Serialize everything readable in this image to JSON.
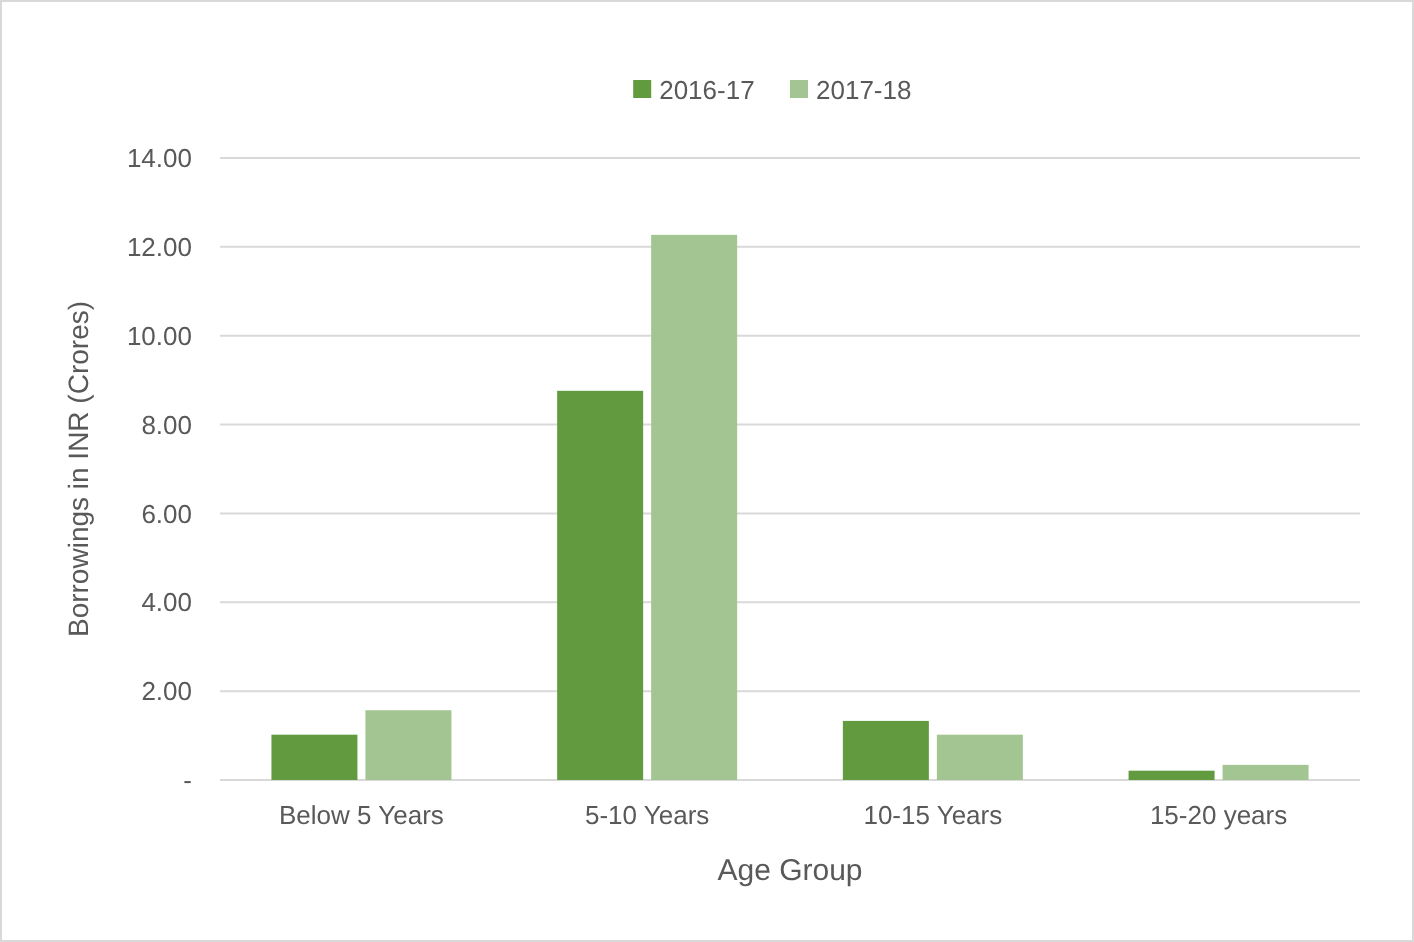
{
  "chart_data": {
    "type": "bar",
    "xlabel": "Age Group",
    "ylabel": "Borrowings in INR (Crores)",
    "categories": [
      "Below 5 Years",
      "5-10 Years",
      "10-15 Years",
      "15-20 years"
    ],
    "series": [
      {
        "name": "2016-17",
        "color": "#629a3f",
        "values": [
          1.02,
          8.76,
          1.33,
          0.21
        ]
      },
      {
        "name": "2017-18",
        "color": "#a3c592",
        "values": [
          1.57,
          12.27,
          1.02,
          0.34
        ]
      }
    ],
    "ylim": [
      0,
      14
    ],
    "yticks": [
      {
        "value": 0,
        "label": "-"
      },
      {
        "value": 2,
        "label": "2.00"
      },
      {
        "value": 4,
        "label": "4.00"
      },
      {
        "value": 6,
        "label": "6.00"
      },
      {
        "value": 8,
        "label": "8.00"
      },
      {
        "value": 10,
        "label": "10.00"
      },
      {
        "value": 12,
        "label": "12.00"
      },
      {
        "value": 14,
        "label": "14.00"
      }
    ],
    "grid": "y",
    "legend": "top"
  }
}
